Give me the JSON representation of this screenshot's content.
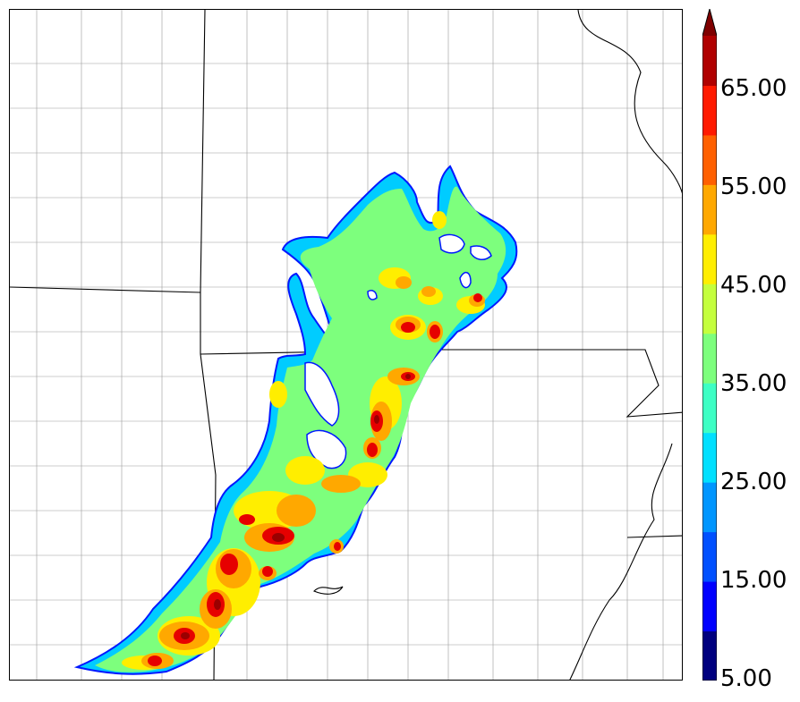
{
  "colorbar": {
    "labels": [
      "65.00",
      "55.00",
      "45.00",
      "35.00",
      "25.00",
      "15.00",
      "5.00"
    ],
    "colors": [
      "#00007f",
      "#0000ff",
      "#0050ff",
      "#0096ff",
      "#00e0ff",
      "#3dffc4",
      "#7dff7d",
      "#c4ff3d",
      "#ffee00",
      "#ffa800",
      "#ff6000",
      "#ff1a00",
      "#b00000",
      "#7f0000"
    ],
    "extend": "max"
  },
  "legend_placement": "right",
  "map": {
    "fill_colors": {
      "c1": "#00ccff",
      "c2": "#3dffc4",
      "c3": "#7dff7d",
      "c4": "#c4ff3d",
      "c5": "#ffee00",
      "c6": "#ffa800",
      "c7": "#ff6000",
      "c8": "#e60000",
      "c9": "#9a0000",
      "outline": "#0018ff"
    }
  }
}
